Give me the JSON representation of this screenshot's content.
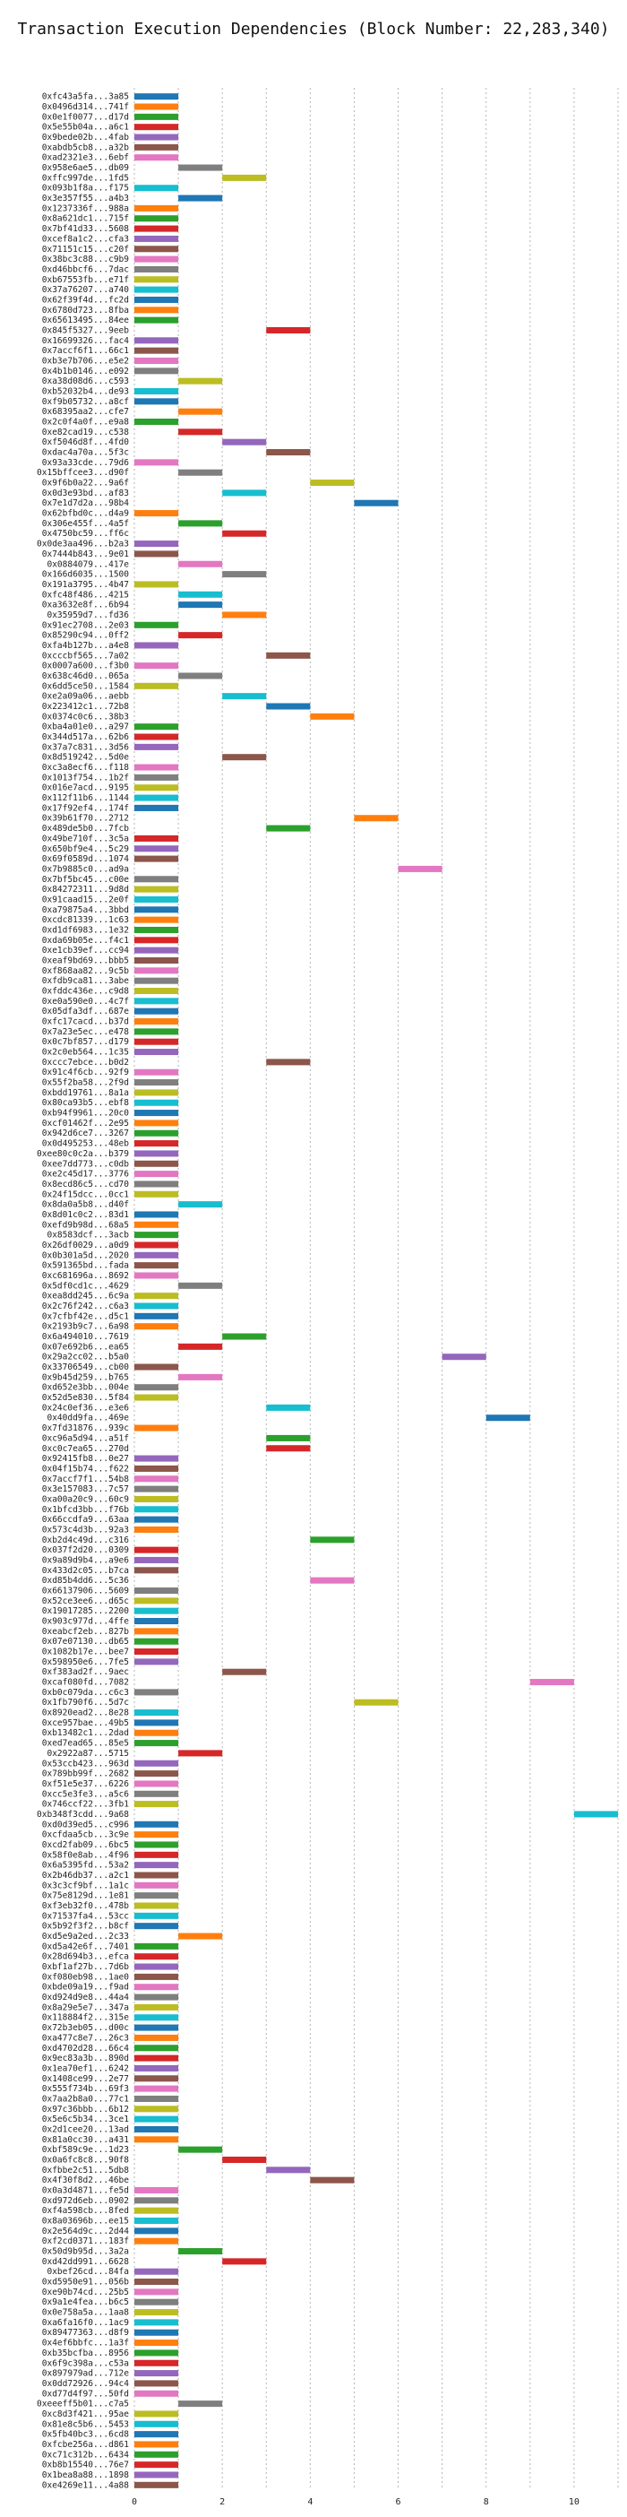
{
  "chart_data": {
    "type": "bar",
    "orientation": "horizontal",
    "title": "Transaction Execution Dependencies (Block Number: 22,283,340)",
    "xlabel": "",
    "ylabel": "",
    "xlim": [
      0,
      11
    ],
    "x_ticks": [
      0,
      2,
      4,
      6,
      8,
      10
    ],
    "grid": "vertical dotted",
    "bar_length": 1,
    "palette": [
      "#1f77b4",
      "#ff7f0e",
      "#2ca02c",
      "#d62728",
      "#9467bd",
      "#8c564b",
      "#e377c2",
      "#7f7f7f",
      "#bcbd22",
      "#17becf"
    ],
    "transactions": [
      {
        "label": "0xfc43a5fa...3a85",
        "start": 0
      },
      {
        "label": "0x0496d314...741f",
        "start": 0
      },
      {
        "label": "0x0e1f0077...d17d",
        "start": 0
      },
      {
        "label": "0x5e55b04a...a6c1",
        "start": 0
      },
      {
        "label": "0x9bede02b...4fab",
        "start": 0
      },
      {
        "label": "0xabdb5cb8...a32b",
        "start": 0
      },
      {
        "label": "0xad2321e3...6ebf",
        "start": 0
      },
      {
        "label": "0x958e6ae5...db09",
        "start": 1
      },
      {
        "label": "0xffc997de...1fd5",
        "start": 2
      },
      {
        "label": "0x093b1f8a...f175",
        "start": 0
      },
      {
        "label": "0x3e357f55...a4b3",
        "start": 1
      },
      {
        "label": "0x1237336f...988a",
        "start": 0
      },
      {
        "label": "0x8a621dc1...715f",
        "start": 0
      },
      {
        "label": "0x7bf41d33...5608",
        "start": 0
      },
      {
        "label": "0xcef8a1c2...cfa3",
        "start": 0
      },
      {
        "label": "0x71151c15...c20f",
        "start": 0
      },
      {
        "label": "0x38bc3c88...c9b9",
        "start": 0
      },
      {
        "label": "0xd46bbcf6...7dac",
        "start": 0
      },
      {
        "label": "0xb67553fb...e71f",
        "start": 0
      },
      {
        "label": "0x37a76207...a740",
        "start": 0
      },
      {
        "label": "0x62f39f4d...fc2d",
        "start": 0
      },
      {
        "label": "0x6780d723...8fba",
        "start": 0
      },
      {
        "label": "0x65613495...84ee",
        "start": 0
      },
      {
        "label": "0x845f5327...9eeb",
        "start": 3
      },
      {
        "label": "0x16699326...fac4",
        "start": 0
      },
      {
        "label": "0x7accf6f1...66c1",
        "start": 0
      },
      {
        "label": "0xb3e7b706...e5e2",
        "start": 0
      },
      {
        "label": "0x4b1b0146...e092",
        "start": 0
      },
      {
        "label": "0xa38d08d6...c593",
        "start": 1
      },
      {
        "label": "0xb52032b4...de93",
        "start": 0
      },
      {
        "label": "0xf9b05732...a8cf",
        "start": 0
      },
      {
        "label": "0x68395aa2...cfe7",
        "start": 1
      },
      {
        "label": "0x2c0f4a0f...e9a8",
        "start": 0
      },
      {
        "label": "0xe82cad19...c538",
        "start": 1
      },
      {
        "label": "0xf5046d8f...4fd0",
        "start": 2
      },
      {
        "label": "0xdac4a70a...5f3c",
        "start": 3
      },
      {
        "label": "0x93a33cde...79d6",
        "start": 0
      },
      {
        "label": "0x15bffcee3...d90f",
        "start": 1
      },
      {
        "label": "0x9f6b0a22...9a6f",
        "start": 4
      },
      {
        "label": "0x0d3e93bd...af83",
        "start": 2
      },
      {
        "label": "0x7e1d7d2a...98b4",
        "start": 5
      },
      {
        "label": "0x62bfbd0c...d4a9",
        "start": 0
      },
      {
        "label": "0x306e455f...4a5f",
        "start": 1
      },
      {
        "label": "0x4750bc59...ff6c",
        "start": 2
      },
      {
        "label": "0x0de3aa496...b2a3",
        "start": 0
      },
      {
        "label": "0x7444b843...9e01",
        "start": 0
      },
      {
        "label": "0x0884079...417e",
        "start": 1
      },
      {
        "label": "0x166d6035...1500",
        "start": 2
      },
      {
        "label": "0x191a3795...4b47",
        "start": 0
      },
      {
        "label": "0xfc48f486...4215",
        "start": 1
      },
      {
        "label": "0xa3632e8f...6b94",
        "start": 1
      },
      {
        "label": "0x35959d7...fd36",
        "start": 2
      },
      {
        "label": "0x91ec2708...2e03",
        "start": 0
      },
      {
        "label": "0x85290c94...0ff2",
        "start": 1
      },
      {
        "label": "0xfa4b127b...a4e8",
        "start": 0
      },
      {
        "label": "0xcccbf565...7a02",
        "start": 3
      },
      {
        "label": "0x0007a600...f3b0",
        "start": 0
      },
      {
        "label": "0x638c46d0...065a",
        "start": 1
      },
      {
        "label": "0x6dd5ce50...1584",
        "start": 0
      },
      {
        "label": "0xe2a09a06...aebb",
        "start": 2
      },
      {
        "label": "0x223412c1...72b8",
        "start": 3
      },
      {
        "label": "0x0374c0c6...38b3",
        "start": 4
      },
      {
        "label": "0xba4a01e0...a297",
        "start": 0
      },
      {
        "label": "0x344d517a...62b6",
        "start": 0
      },
      {
        "label": "0x37a7c831...3d56",
        "start": 0
      },
      {
        "label": "0x8d519242...5d0e",
        "start": 2
      },
      {
        "label": "0xc3a8ecf6...f118",
        "start": 0
      },
      {
        "label": "0x1013f754...1b2f",
        "start": 0
      },
      {
        "label": "0x016e7acd...9195",
        "start": 0
      },
      {
        "label": "0x112f11b6...1144",
        "start": 0
      },
      {
        "label": "0x17f92ef4...174f",
        "start": 0
      },
      {
        "label": "0x39b61f70...2712",
        "start": 5
      },
      {
        "label": "0x489de5b0...7fcb",
        "start": 3
      },
      {
        "label": "0x49be710f...3c5a",
        "start": 0
      },
      {
        "label": "0x650bf9e4...5c29",
        "start": 0
      },
      {
        "label": "0x69f0589d...1074",
        "start": 0
      },
      {
        "label": "0x7b9885c0...ad9a",
        "start": 6
      },
      {
        "label": "0x7bf5bc45...c00e",
        "start": 0
      },
      {
        "label": "0x84272311...9d8d",
        "start": 0
      },
      {
        "label": "0x91caad15...2e0f",
        "start": 0
      },
      {
        "label": "0xa79875a4...3bbd",
        "start": 0
      },
      {
        "label": "0xcdc81339...1c63",
        "start": 0
      },
      {
        "label": "0xd1df6983...1e32",
        "start": 0
      },
      {
        "label": "0xda69b05e...f4c1",
        "start": 0
      },
      {
        "label": "0xe1cb39ef...cc94",
        "start": 0
      },
      {
        "label": "0xeaf9bd69...bbb5",
        "start": 0
      },
      {
        "label": "0xf868aa82...9c5b",
        "start": 0
      },
      {
        "label": "0xfdb9ca81...3abe",
        "start": 0
      },
      {
        "label": "0xfddc436e...c9d8",
        "start": 0
      },
      {
        "label": "0xe0a590e0...4c7f",
        "start": 0
      },
      {
        "label": "0x05dfa3df...687e",
        "start": 0
      },
      {
        "label": "0xfc17cacd...b37d",
        "start": 0
      },
      {
        "label": "0x7a23e5ec...e478",
        "start": 0
      },
      {
        "label": "0x0c7bf857...d179",
        "start": 0
      },
      {
        "label": "0x2c0eb564...1c35",
        "start": 0
      },
      {
        "label": "0xccc7ebce...b0d2",
        "start": 3
      },
      {
        "label": "0x91c4f6cb...92f9",
        "start": 0
      },
      {
        "label": "0x55f2ba58...2f9d",
        "start": 0
      },
      {
        "label": "0xbdd19761...8a1a",
        "start": 0
      },
      {
        "label": "0x80ca93b5...ebf8",
        "start": 0
      },
      {
        "label": "0xb94f9961...20c0",
        "start": 0
      },
      {
        "label": "0xcf01462f...2e95",
        "start": 0
      },
      {
        "label": "0x942d6ce7...3267",
        "start": 0
      },
      {
        "label": "0x0d495253...48eb",
        "start": 0
      },
      {
        "label": "0xee80c0c2a...b379",
        "start": 0
      },
      {
        "label": "0xee7dd773...c0db",
        "start": 0
      },
      {
        "label": "0xe2c45d17...3776",
        "start": 0
      },
      {
        "label": "0x8ecd86c5...cd70",
        "start": 0
      },
      {
        "label": "0x24f15dcc...0cc1",
        "start": 0
      },
      {
        "label": "0x8da0a5b8...d40f",
        "start": 1
      },
      {
        "label": "0x8d01c0c2...83d1",
        "start": 0
      },
      {
        "label": "0xefd9b98d...68a5",
        "start": 0
      },
      {
        "label": "0x8583dcf...3acb",
        "start": 0
      },
      {
        "label": "0x26df0029...a0d9",
        "start": 0
      },
      {
        "label": "0x0b301a5d...2020",
        "start": 0
      },
      {
        "label": "0x591365bd...fada",
        "start": 0
      },
      {
        "label": "0xc681696a...8692",
        "start": 0
      },
      {
        "label": "0x5df0cd1c...4629",
        "start": 1
      },
      {
        "label": "0xea8dd245...6c9a",
        "start": 0
      },
      {
        "label": "0x2c76f242...c6a3",
        "start": 0
      },
      {
        "label": "0x7cfbf42e...d5c1",
        "start": 0
      },
      {
        "label": "0x2193b9c7...6a98",
        "start": 0
      },
      {
        "label": "0x6a494010...7619",
        "start": 2
      },
      {
        "label": "0x07e692b6...ea65",
        "start": 1
      },
      {
        "label": "0x29a2cc02...b5a0",
        "start": 7
      },
      {
        "label": "0x33706549...cb00",
        "start": 0
      },
      {
        "label": "0x9b45d259...b765",
        "start": 1
      },
      {
        "label": "0xd652e3bb...004e",
        "start": 0
      },
      {
        "label": "0x52d5e830...5f84",
        "start": 0
      },
      {
        "label": "0x24c0ef36...e3e6",
        "start": 3
      },
      {
        "label": "0x40dd9fa...469e",
        "start": 8
      },
      {
        "label": "0x7fd31876...939c",
        "start": 0
      },
      {
        "label": "0xc96a5d94...a51f",
        "start": 3
      },
      {
        "label": "0xc0c7ea65...270d",
        "start": 3
      },
      {
        "label": "0x92415fb8...0e27",
        "start": 0
      },
      {
        "label": "0x04f15b74...f622",
        "start": 0
      },
      {
        "label": "0x7accf7f1...54b8",
        "start": 0
      },
      {
        "label": "0x3e157083...7c57",
        "start": 0
      },
      {
        "label": "0xa00a20c9...60c9",
        "start": 0
      },
      {
        "label": "0x1bfcd3bb...f76b",
        "start": 0
      },
      {
        "label": "0x66ccdfa9...63aa",
        "start": 0
      },
      {
        "label": "0x573c4d3b...92a3",
        "start": 0
      },
      {
        "label": "0xb2d4c49d...c316",
        "start": 4
      },
      {
        "label": "0x037f2d20...0309",
        "start": 0
      },
      {
        "label": "0x9a89d9b4...a9e6",
        "start": 0
      },
      {
        "label": "0x433d2c05...b7ca",
        "start": 0
      },
      {
        "label": "0xd85b4dd6...5c36",
        "start": 4
      },
      {
        "label": "0x66137906...5609",
        "start": 0
      },
      {
        "label": "0x52ce3ee6...d65c",
        "start": 0
      },
      {
        "label": "0x19017285...2200",
        "start": 0
      },
      {
        "label": "0x903c977d...4ffe",
        "start": 0
      },
      {
        "label": "0xeabcf2eb...827b",
        "start": 0
      },
      {
        "label": "0x07e07130...db65",
        "start": 0
      },
      {
        "label": "0x1082b17e...bee7",
        "start": 0
      },
      {
        "label": "0x598950e6...7fe5",
        "start": 0
      },
      {
        "label": "0xf383ad2f...9aec",
        "start": 2
      },
      {
        "label": "0xcaf080fd...7082",
        "start": 9
      },
      {
        "label": "0xb0c079da...c6c3",
        "start": 0
      },
      {
        "label": "0x1fb790f6...5d7c",
        "start": 5
      },
      {
        "label": "0x8920ead2...8e28",
        "start": 0
      },
      {
        "label": "0xce957bae...49b5",
        "start": 0
      },
      {
        "label": "0xb13482c1...2dad",
        "start": 0
      },
      {
        "label": "0xed7ead65...85e5",
        "start": 0
      },
      {
        "label": "0x2922a87...5715",
        "start": 1
      },
      {
        "label": "0x53ccb423...963d",
        "start": 0
      },
      {
        "label": "0x789bb99f...2682",
        "start": 0
      },
      {
        "label": "0xf51e5e37...6226",
        "start": 0
      },
      {
        "label": "0xcc5e3fe3...a5c6",
        "start": 0
      },
      {
        "label": "0x746ccf22...3fb1",
        "start": 0
      },
      {
        "label": "0xb348f3cdd...9a68",
        "start": 10
      },
      {
        "label": "0xd0d39ed5...c996",
        "start": 0
      },
      {
        "label": "0xcfdaa5cb...3c9e",
        "start": 0
      },
      {
        "label": "0xcd2fab09...6bc5",
        "start": 0
      },
      {
        "label": "0x58f0e8ab...4f96",
        "start": 0
      },
      {
        "label": "0x6a5395fd...53a2",
        "start": 0
      },
      {
        "label": "0x2b46db37...a2c1",
        "start": 0
      },
      {
        "label": "0x3c3cf9bf...1a1c",
        "start": 0
      },
      {
        "label": "0x75e8129d...1e81",
        "start": 0
      },
      {
        "label": "0xf3eb32f0...478b",
        "start": 0
      },
      {
        "label": "0x71537fa4...53cc",
        "start": 0
      },
      {
        "label": "0x5b92f3f2...b8cf",
        "start": 0
      },
      {
        "label": "0xd5e9a2ed...2c33",
        "start": 1
      },
      {
        "label": "0xd5a42e6f...7401",
        "start": 0
      },
      {
        "label": "0x28d694b3...efca",
        "start": 0
      },
      {
        "label": "0xbf1af27b...7d6b",
        "start": 0
      },
      {
        "label": "0xf080eb98...1ae0",
        "start": 0
      },
      {
        "label": "0xbde09a19...f9ad",
        "start": 0
      },
      {
        "label": "0xd924d9e8...44a4",
        "start": 0
      },
      {
        "label": "0x8a29e5e7...347a",
        "start": 0
      },
      {
        "label": "0x118884f2...315e",
        "start": 0
      },
      {
        "label": "0x72b3eb05...d00c",
        "start": 0
      },
      {
        "label": "0xa477c8e7...26c3",
        "start": 0
      },
      {
        "label": "0xd4702d28...66c4",
        "start": 0
      },
      {
        "label": "0x9ec83a3b...890d",
        "start": 0
      },
      {
        "label": "0x1ea70ef1...6242",
        "start": 0
      },
      {
        "label": "0x1408ce99...2e77",
        "start": 0
      },
      {
        "label": "0x555f734b...69f3",
        "start": 0
      },
      {
        "label": "0x7aa2b8a0...77c1",
        "start": 0
      },
      {
        "label": "0x97c36bbb...6b12",
        "start": 0
      },
      {
        "label": "0x5e6c5b34...3ce1",
        "start": 0
      },
      {
        "label": "0x2d1cee20...13ad",
        "start": 0
      },
      {
        "label": "0x81a0cc30...a431",
        "start": 0
      },
      {
        "label": "0xbf589c9e...1d23",
        "start": 1
      },
      {
        "label": "0x0a6fc8c8...90f8",
        "start": 2
      },
      {
        "label": "0xfbbe2c51...5db8",
        "start": 3
      },
      {
        "label": "0x4f30f8d2...46be",
        "start": 4
      },
      {
        "label": "0x0a3d4871...fe5d",
        "start": 0
      },
      {
        "label": "0xd972d6eb...0902",
        "start": 0
      },
      {
        "label": "0xf4a598cb...8fed",
        "start": 0
      },
      {
        "label": "0x8a03696b...ee15",
        "start": 0
      },
      {
        "label": "0x2e564d9c...2d44",
        "start": 0
      },
      {
        "label": "0xf2cd0371...183f",
        "start": 0
      },
      {
        "label": "0x50d9b95d...3a2a",
        "start": 1
      },
      {
        "label": "0xd42dd991...6628",
        "start": 2
      },
      {
        "label": "0xbef26cd...84fa",
        "start": 0
      },
      {
        "label": "0xd5950e91...056b",
        "start": 0
      },
      {
        "label": "0xe90b74cd...25b5",
        "start": 0
      },
      {
        "label": "0x9a1e4fea...b6c5",
        "start": 0
      },
      {
        "label": "0x0e758a5a...1aa8",
        "start": 0
      },
      {
        "label": "0xa6fa16f0...1ac9",
        "start": 0
      },
      {
        "label": "0x89477363...d8f9",
        "start": 0
      },
      {
        "label": "0x4ef6bbfc...1a3f",
        "start": 0
      },
      {
        "label": "0xb35bcfba...8956",
        "start": 0
      },
      {
        "label": "0x6f9c398a...c53a",
        "start": 0
      },
      {
        "label": "0x897979ad...712e",
        "start": 0
      },
      {
        "label": "0x0dd72926...94c4",
        "start": 0
      },
      {
        "label": "0xd77d4f97...50fd",
        "start": 0
      },
      {
        "label": "0xeeeff5b01...c7a5",
        "start": 1
      },
      {
        "label": "0xc8d3f421...95ae",
        "start": 0
      },
      {
        "label": "0x81e8c5b6...5453",
        "start": 0
      },
      {
        "label": "0x5fb40bc3...6cd8",
        "start": 0
      },
      {
        "label": "0xfcbe256a...d861",
        "start": 0
      },
      {
        "label": "0xc71c312b...6434",
        "start": 0
      },
      {
        "label": "0xb8b15540...76e7",
        "start": 0
      },
      {
        "label": "0x1bea8a88...1898",
        "start": 0
      },
      {
        "label": "0xe4269e11...4a88",
        "start": 0
      }
    ]
  }
}
